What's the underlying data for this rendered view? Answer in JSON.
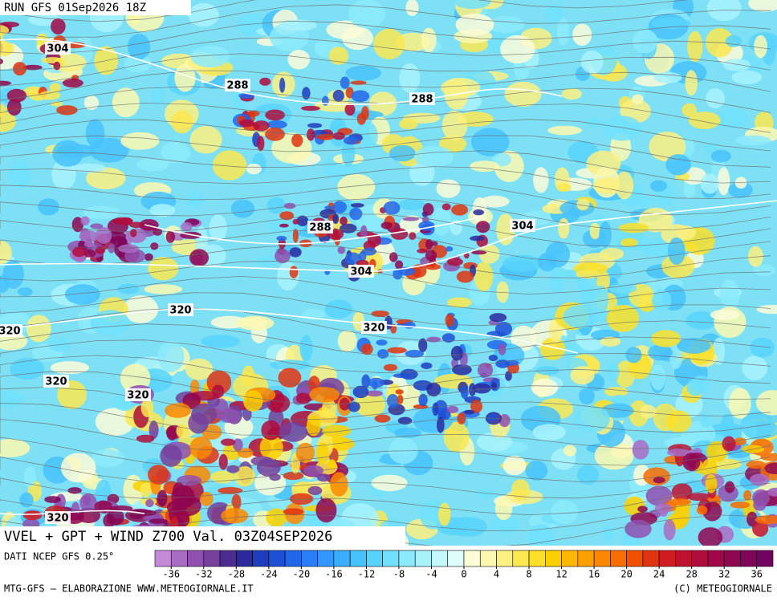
{
  "header": {
    "run": "RUN GFS 01Sep2026 18Z"
  },
  "contour_labels": [
    304,
    288,
    288,
    288,
    304,
    304,
    320,
    320,
    320,
    320,
    320,
    320
  ],
  "title": "VVEL + GPT + WIND Z700 Val. 03Z04SEP2026",
  "source": "DATI NCEP GFS 0.25°",
  "colorbar": {
    "lim": [
      -38,
      38
    ],
    "ticks": [
      -36,
      -32,
      -28,
      -24,
      -20,
      -16,
      -12,
      -8,
      -4,
      0,
      4,
      8,
      12,
      16,
      20,
      24,
      28,
      32,
      36
    ],
    "colors": [
      "#c48ad8",
      "#a86cc4",
      "#9050b0",
      "#74409c",
      "#4c2c90",
      "#2a2a9c",
      "#1e3cbe",
      "#1e50d6",
      "#2266ea",
      "#2a7ef6",
      "#3296fa",
      "#3aaefc",
      "#46c2fc",
      "#58d4fc",
      "#70e0fc",
      "#8ceafc",
      "#a8f2fc",
      "#c4f8fc",
      "#e0fcfc",
      "#fcfcd8",
      "#fcf8b0",
      "#fcf080",
      "#fce850",
      "#fce028",
      "#fcd000",
      "#fcb800",
      "#fca000",
      "#fc8800",
      "#f86c00",
      "#f05000",
      "#e03410",
      "#d01c20",
      "#c01030",
      "#b00c3c",
      "#a00848",
      "#900650",
      "#800458",
      "#700460"
    ]
  },
  "footer": {
    "left": "MTG-GFS – ELABORAZIONE WWW.METEOGIORNALE.IT",
    "right": "(C) METEOGIORNALE"
  }
}
